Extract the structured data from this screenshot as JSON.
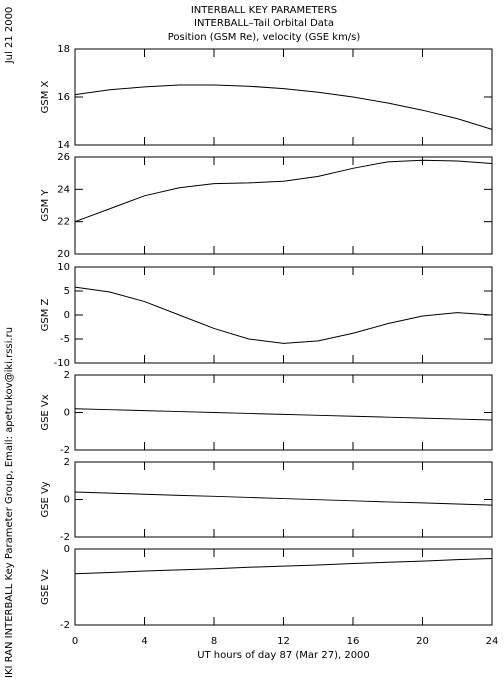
{
  "header": {
    "title": "INTERBALL KEY PARAMETERS",
    "subtitle": "INTERBALL–Tail Orbital Data",
    "description": "Position (GSM Re), velocity (GSE km/s)",
    "date": "Jul 21 2000",
    "credit": "IKI RAN INTERBALL Key Parameter Group, Email: apetrukov@iki.rssi.ru"
  },
  "chart_data": [
    {
      "type": "line",
      "ylabel": "GSM X",
      "xlim": [
        0,
        24
      ],
      "ylim": [
        14,
        18
      ],
      "yticks": [
        14,
        16,
        18
      ],
      "x": [
        0,
        2,
        4,
        6,
        8,
        10,
        12,
        14,
        16,
        18,
        20,
        22,
        24
      ],
      "values": [
        16.1,
        16.3,
        16.42,
        16.5,
        16.5,
        16.45,
        16.35,
        16.2,
        16.0,
        15.75,
        15.45,
        15.1,
        14.65
      ]
    },
    {
      "type": "line",
      "ylabel": "GSM Y",
      "xlim": [
        0,
        24
      ],
      "ylim": [
        20,
        26
      ],
      "yticks": [
        20,
        22,
        24,
        26
      ],
      "x": [
        0,
        2,
        4,
        6,
        8,
        10,
        12,
        14,
        16,
        18,
        20,
        22,
        24
      ],
      "values": [
        22.0,
        22.8,
        23.6,
        24.1,
        24.35,
        24.4,
        24.5,
        24.8,
        25.3,
        25.7,
        25.8,
        25.75,
        25.6
      ]
    },
    {
      "type": "line",
      "ylabel": "GSM Z",
      "xlim": [
        0,
        24
      ],
      "ylim": [
        -10,
        10
      ],
      "yticks": [
        -10,
        -5,
        0,
        5,
        10
      ],
      "x": [
        0,
        2,
        4,
        6,
        8,
        10,
        12,
        14,
        16,
        18,
        20,
        22,
        24
      ],
      "values": [
        5.8,
        4.8,
        2.8,
        0.0,
        -2.8,
        -5.0,
        -5.9,
        -5.4,
        -3.8,
        -1.8,
        -0.2,
        0.5,
        0.0
      ]
    },
    {
      "type": "line",
      "ylabel": "GSE Vx",
      "xlim": [
        0,
        24
      ],
      "ylim": [
        -2,
        2
      ],
      "yticks": [
        -2,
        0,
        2
      ],
      "x": [
        0,
        2,
        4,
        6,
        8,
        10,
        12,
        14,
        16,
        18,
        20,
        22,
        24
      ],
      "values": [
        0.2,
        0.15,
        0.1,
        0.05,
        0,
        -0.05,
        -0.1,
        -0.15,
        -0.2,
        -0.25,
        -0.3,
        -0.35,
        -0.4
      ]
    },
    {
      "type": "line",
      "ylabel": "GSE Vy",
      "xlim": [
        0,
        24
      ],
      "ylim": [
        -2,
        2
      ],
      "yticks": [
        -2,
        0,
        2
      ],
      "x": [
        0,
        2,
        4,
        6,
        8,
        10,
        12,
        14,
        16,
        18,
        20,
        22,
        24
      ],
      "values": [
        0.4,
        0.34,
        0.28,
        0.22,
        0.17,
        0.11,
        0.05,
        -0.01,
        -0.07,
        -0.13,
        -0.18,
        -0.24,
        -0.3
      ]
    },
    {
      "type": "line",
      "ylabel": "GSE Vz",
      "xlabel": "UT hours of day  87 (Mar 27), 2000",
      "xlim": [
        0,
        24
      ],
      "ylim": [
        -2,
        0
      ],
      "yticks": [
        -2,
        0
      ],
      "xticks": [
        0,
        4,
        8,
        12,
        16,
        20,
        24
      ],
      "x": [
        0,
        2,
        4,
        6,
        8,
        10,
        12,
        14,
        16,
        18,
        20,
        22,
        24
      ],
      "values": [
        -0.65,
        -0.62,
        -0.58,
        -0.55,
        -0.52,
        -0.48,
        -0.45,
        -0.42,
        -0.38,
        -0.35,
        -0.32,
        -0.28,
        -0.25
      ]
    }
  ]
}
